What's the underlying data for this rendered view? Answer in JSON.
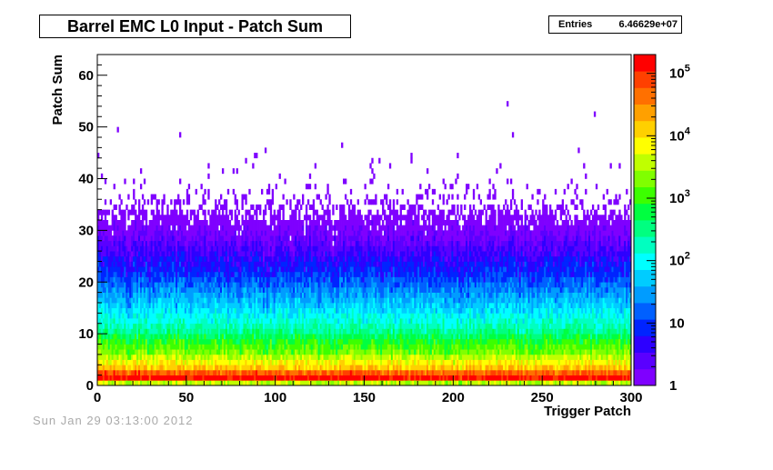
{
  "chart_data": {
    "type": "heatmap",
    "title": "Barrel EMC L0 Input - Patch Sum",
    "xlabel": "Trigger Patch",
    "ylabel": "Patch Sum",
    "xlim": [
      0,
      300
    ],
    "ylim": [
      0,
      64
    ],
    "x_bins": 300,
    "y_bins": 64,
    "x_ticks": [
      0,
      50,
      100,
      150,
      200,
      250,
      300
    ],
    "y_ticks": [
      0,
      10,
      20,
      30,
      40,
      50,
      60
    ],
    "z_scale": "log",
    "z_range": [
      1,
      200000
    ],
    "colorbar_tick_labels": [
      {
        "value": 1,
        "base": "1",
        "exp": ""
      },
      {
        "value": 10,
        "base": "10",
        "exp": ""
      },
      {
        "value": 100,
        "base": "10",
        "exp": "2"
      },
      {
        "value": 1000,
        "base": "10",
        "exp": "3"
      },
      {
        "value": 10000,
        "base": "10",
        "exp": "4"
      },
      {
        "value": 100000,
        "base": "10",
        "exp": "5"
      }
    ],
    "density_profile": {
      "description": "approximate counts per bin by patch-sum row",
      "rows": [
        {
          "y": 0,
          "count": 4000
        },
        {
          "y": 1,
          "count": 150000
        },
        {
          "y": 2,
          "count": 60000
        },
        {
          "y": 3,
          "count": 15000
        },
        {
          "y": 4,
          "count": 8000
        },
        {
          "y": 5,
          "count": 4000
        },
        {
          "y": 6,
          "count": 2000
        },
        {
          "y": 8,
          "count": 900
        },
        {
          "y": 10,
          "count": 300
        },
        {
          "y": 12,
          "count": 150
        },
        {
          "y": 15,
          "count": 60
        },
        {
          "y": 18,
          "count": 25
        },
        {
          "y": 21,
          "count": 10
        },
        {
          "y": 25,
          "count": 4
        },
        {
          "y": 28,
          "count": 2
        },
        {
          "y": 31,
          "count": 1
        }
      ]
    },
    "stats": {
      "entries_label": "Entries",
      "entries": "6.46629e+07"
    },
    "palette": [
      "#7f00ff",
      "#5a00ff",
      "#2d00ff",
      "#0024ff",
      "#0060ff",
      "#009cff",
      "#00ccff",
      "#00ffff",
      "#00ffc0",
      "#00ff80",
      "#00ff40",
      "#3cff00",
      "#80ff00",
      "#c0ff00",
      "#ffff00",
      "#ffd000",
      "#ffa000",
      "#ff7000",
      "#ff4000",
      "#ff0000"
    ]
  },
  "footer": {
    "date_text": "Sun Jan 29 03:13:00 2012"
  }
}
